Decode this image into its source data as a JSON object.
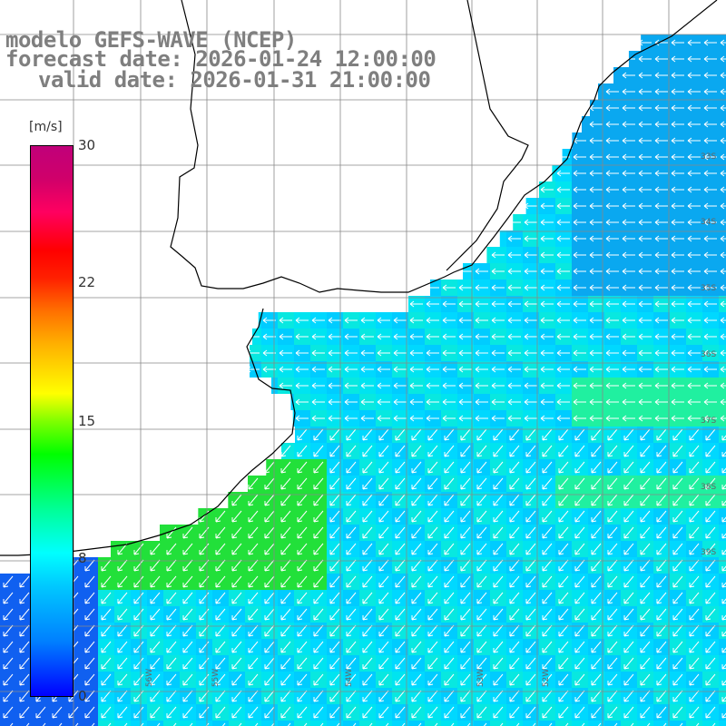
{
  "title": {
    "line1": "modelo GEFS-WAVE (NCEP)",
    "line2": "forecast date: 2026-01-24 12:00:00",
    "line3": "valid date: 2026-01-31 21:00:00"
  },
  "colorbar": {
    "unit": "[m/s]",
    "ticks": [
      "30",
      "22",
      "15",
      "8",
      "0"
    ],
    "tick_values": [
      30,
      22,
      15,
      8,
      0
    ],
    "colors": [
      "#0000ff",
      "#00c8ff",
      "#00ffff",
      "#00ff00",
      "#ffff00",
      "#ff8000",
      "#ff0000",
      "#c0007a"
    ]
  },
  "map": {
    "lat_labels": [
      "33S",
      "34S",
      "35S",
      "36S",
      "37S",
      "38S",
      "39S"
    ],
    "lon_labels": [
      "56W",
      "55W",
      "54W",
      "53W",
      "52W"
    ],
    "land_color": "#ffffff",
    "coast_color": "#000000",
    "grid_color": "#888888",
    "arrow_color": "#ffffff",
    "dominant_wind_dir_north": "westward",
    "dominant_wind_dir_south": "south-westward"
  }
}
